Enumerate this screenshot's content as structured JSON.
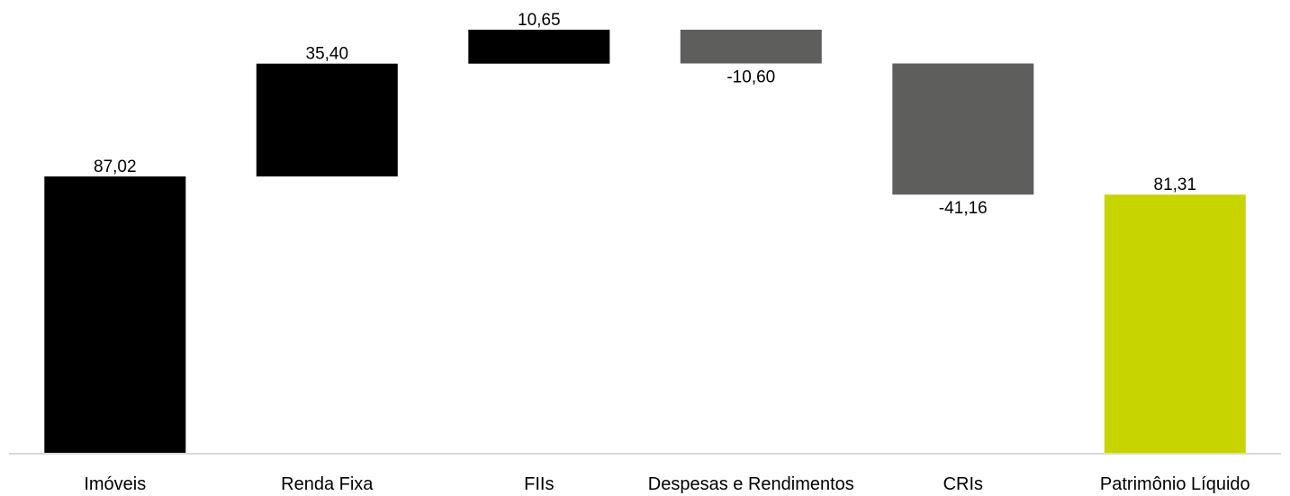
{
  "chart_data": {
    "type": "bar",
    "subtype": "waterfall",
    "categories": [
      "Imóveis",
      "Renda Fixa",
      "FIIs",
      "Despesas e Rendimentos",
      "CRIs",
      "Patrimônio Líquido"
    ],
    "values": [
      87.02,
      35.4,
      10.65,
      -10.6,
      -41.16,
      81.31
    ],
    "value_labels": [
      "87,02",
      "35,40",
      "10,65",
      "-10,60",
      "-41,16",
      "81,31"
    ],
    "bar_kind": [
      "total",
      "delta",
      "delta",
      "delta",
      "delta",
      "total"
    ],
    "colors": {
      "positive": "#000000",
      "negative": "#5e5e5c",
      "total": "#000000",
      "final_total": "#c8d400",
      "axis": "#d9d9d9"
    },
    "ylim": [
      0,
      135
    ],
    "grid": false,
    "legend": "none",
    "title": "",
    "xlabel": "",
    "ylabel": ""
  }
}
